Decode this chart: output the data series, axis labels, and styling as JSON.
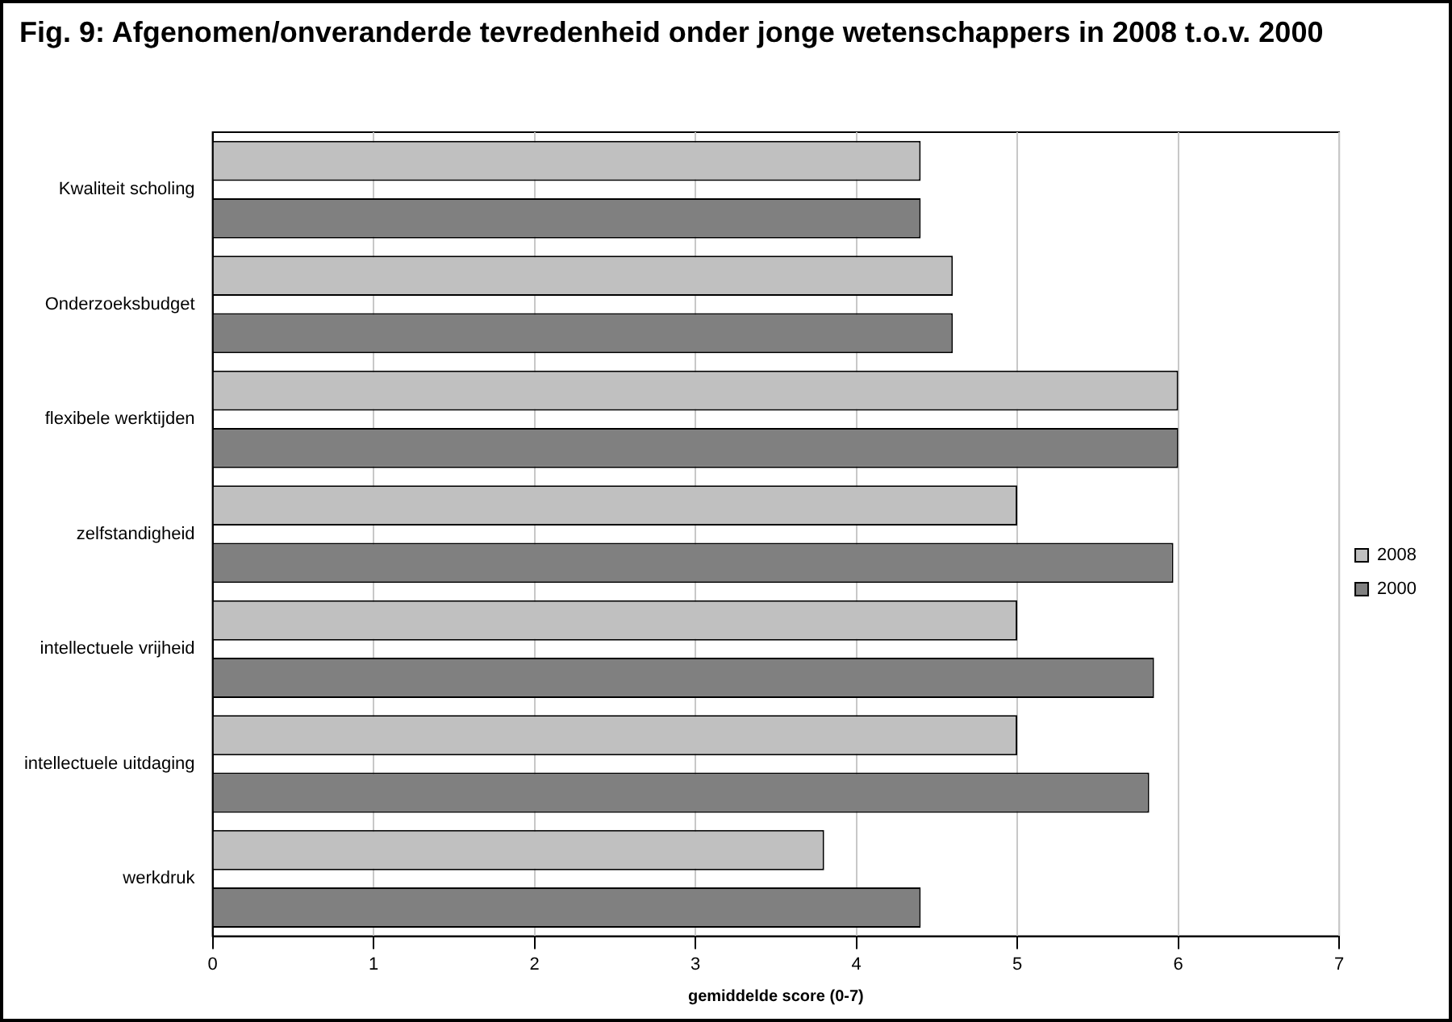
{
  "chart_data": {
    "type": "bar",
    "orientation": "horizontal",
    "title": "Fig. 9: Afgenomen/onveranderde tevredenheid onder jonge wetenschappers in 2008 t.o.v. 2000",
    "xlabel": "gemiddelde score (0-7)",
    "categories": [
      "Kwaliteit scholing",
      "Onderzoeksbudget",
      "flexibele werktijden",
      "zelfstandigheid",
      "intellectuele vrijheid",
      "intellectuele uitdaging",
      "werkdruk"
    ],
    "series": [
      {
        "name": "2008",
        "color": "#c0c0c0",
        "values": [
          4.4,
          4.6,
          6.0,
          5.0,
          5.0,
          5.0,
          3.8
        ]
      },
      {
        "name": "2000",
        "color": "#808080",
        "values": [
          4.4,
          4.6,
          6.0,
          5.97,
          5.85,
          5.82,
          4.4
        ]
      }
    ],
    "xlim": [
      0,
      7
    ],
    "xticks": [
      0,
      1,
      2,
      3,
      4,
      5,
      6,
      7
    ],
    "grid": "x",
    "legend": "right"
  }
}
